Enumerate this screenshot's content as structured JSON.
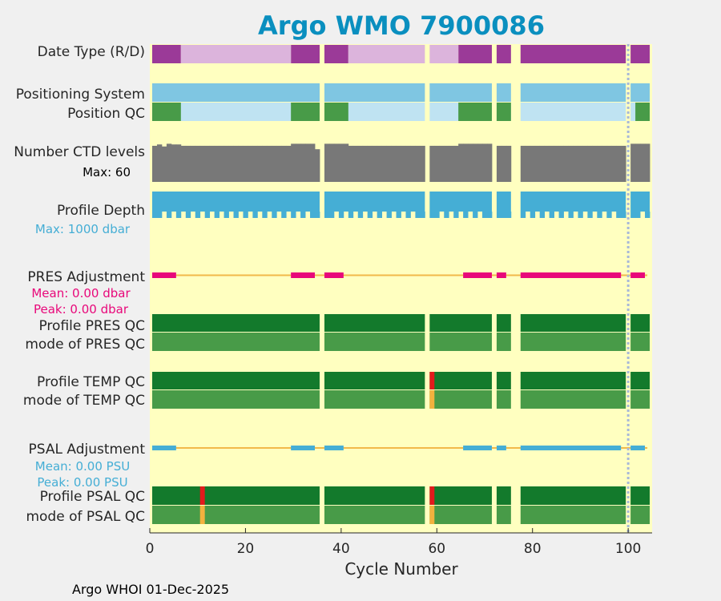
{
  "colors": {
    "background": "#f0f0f0",
    "plot_bg": "#ffffc0",
    "title": "#0a8fbf",
    "dmode_R": "#9b3a98",
    "dmode_D": "#dcb4dc",
    "pos_system": "#7fc6e2",
    "pos_qc_good": "#489b48",
    "pos_qc_interp": "#bfe3f2",
    "ctd": "#787878",
    "depth": "#45aed5",
    "adjust_line": "#f2b94a",
    "pres_adjust": "#e8087a",
    "psal_adjust": "#45aed5",
    "qc_dark": "#137a2c",
    "qc_light": "#489b48",
    "qc_bad": "#e31a1c",
    "qc_probably_bad": "#f2b13e",
    "current_line": "#a8b8d8"
  },
  "header": {
    "title": "Argo WMO 7900086"
  },
  "footer": {
    "text": "Argo WHOI 01-Dec-2025"
  },
  "chart_data": {
    "type": "timeline",
    "title": "Argo WMO 7900086",
    "xlabel": "Cycle Number",
    "xlim": [
      0,
      105
    ],
    "xticks": [
      0,
      20,
      40,
      60,
      80,
      100
    ],
    "current_cycle": 100,
    "cycle_segments": [
      [
        1,
        35
      ],
      [
        37,
        57
      ],
      [
        59,
        71
      ],
      [
        73,
        75
      ],
      [
        78,
        99
      ],
      [
        101,
        104
      ]
    ],
    "rows": [
      {
        "label": "Date Type (R/D)",
        "kind": "mode",
        "r_ranges": [
          [
            1,
            6
          ],
          [
            30,
            35
          ],
          [
            37,
            41
          ],
          [
            65,
            71
          ],
          [
            73,
            75
          ],
          [
            78,
            99
          ],
          [
            101,
            104
          ]
        ],
        "d_ranges": [
          [
            7,
            29
          ],
          [
            42,
            57
          ],
          [
            59,
            64
          ]
        ]
      },
      {
        "label": "Positioning System",
        "kind": "solid",
        "color_key": "pos_system"
      },
      {
        "label": "Position QC",
        "kind": "posqc",
        "good_ranges": [
          [
            1,
            6
          ],
          [
            30,
            35
          ],
          [
            37,
            41
          ],
          [
            65,
            71
          ],
          [
            73,
            75
          ],
          [
            102,
            104
          ]
        ]
      },
      {
        "label": "Number CTD levels",
        "kind": "ctd",
        "max": 60,
        "max_label": "Max: 60",
        "values": [
          [
            1,
            53
          ],
          [
            2,
            55
          ],
          [
            3,
            52
          ],
          [
            4,
            56
          ],
          [
            5,
            55
          ],
          [
            6,
            55
          ],
          [
            30,
            56
          ],
          [
            31,
            56
          ],
          [
            32,
            56
          ],
          [
            33,
            56
          ],
          [
            34,
            56
          ],
          [
            35,
            48
          ],
          [
            37,
            56
          ],
          [
            38,
            56
          ],
          [
            39,
            56
          ],
          [
            40,
            56
          ],
          [
            41,
            56
          ],
          [
            65,
            56
          ],
          [
            66,
            56
          ],
          [
            67,
            56
          ],
          [
            68,
            56
          ],
          [
            69,
            56
          ],
          [
            70,
            56
          ],
          [
            71,
            56
          ],
          [
            101,
            56
          ],
          [
            102,
            56
          ],
          [
            103,
            56
          ],
          [
            104,
            56
          ]
        ],
        "default": 53
      },
      {
        "label": "Profile Depth",
        "kind": "depth",
        "max": 1000,
        "max_label": "Max: 1000 dbar"
      },
      {
        "label": "PRES Adjustment",
        "kind": "adjust",
        "color_key": "pres_adjust",
        "mean_label": "Mean: 0.00 dbar",
        "peak_label": "Peak: 0.00 dbar",
        "ranges": [
          [
            1,
            5
          ],
          [
            30,
            34
          ],
          [
            37,
            40
          ],
          [
            66,
            71
          ],
          [
            73,
            74
          ],
          [
            78,
            98
          ],
          [
            101,
            103
          ]
        ]
      },
      {
        "label": "Profile PRES QC",
        "kind": "qc",
        "level": "profile",
        "bad": []
      },
      {
        "label": "mode of PRES QC",
        "kind": "qc",
        "level": "mode",
        "bad": []
      },
      {
        "label": "Profile TEMP QC",
        "kind": "qc",
        "level": "profile",
        "bad": [
          [
            59,
            "qc_bad"
          ]
        ]
      },
      {
        "label": "mode of TEMP QC",
        "kind": "qc",
        "level": "mode",
        "bad": [
          [
            59,
            "qc_probably_bad"
          ]
        ]
      },
      {
        "label": "PSAL Adjustment",
        "kind": "adjust",
        "color_key": "psal_adjust",
        "mean_label": "Mean: 0.00 PSU",
        "peak_label": "Peak: 0.00 PSU",
        "ranges": [
          [
            1,
            5
          ],
          [
            30,
            34
          ],
          [
            37,
            40
          ],
          [
            66,
            71
          ],
          [
            73,
            74
          ],
          [
            78,
            98
          ],
          [
            101,
            103
          ]
        ]
      },
      {
        "label": "Profile PSAL QC",
        "kind": "qc",
        "level": "profile",
        "bad": [
          [
            11,
            "qc_bad"
          ],
          [
            59,
            "qc_bad"
          ]
        ]
      },
      {
        "label": "mode of PSAL QC",
        "kind": "qc",
        "level": "mode",
        "bad": [
          [
            11,
            "qc_probably_bad"
          ],
          [
            59,
            "qc_probably_bad"
          ]
        ]
      }
    ]
  }
}
